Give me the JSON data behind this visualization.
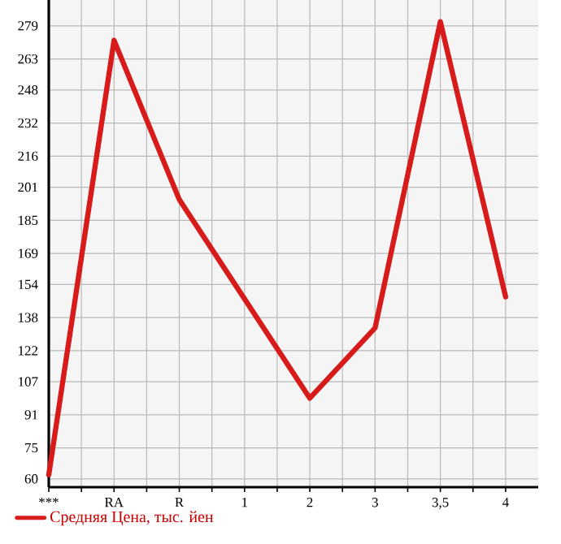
{
  "chart_data": {
    "type": "line",
    "categories": [
      "***",
      "RA",
      "R",
      "1",
      "2",
      "3",
      "3,5",
      "4"
    ],
    "series": [
      {
        "name": "Средняя Цена, тыс. йен",
        "color": "#d71a1a",
        "values": [
          62,
          272,
          195,
          147,
          99,
          133,
          281,
          148
        ]
      }
    ],
    "ylim": [
      56,
      291.5
    ],
    "yticks": [
      60,
      75,
      91,
      107,
      122,
      138,
      154,
      169,
      185,
      201,
      216,
      232,
      248,
      263,
      279
    ],
    "grid": true,
    "legend": "bottom left",
    "marker": "none",
    "line_style": "solid"
  }
}
